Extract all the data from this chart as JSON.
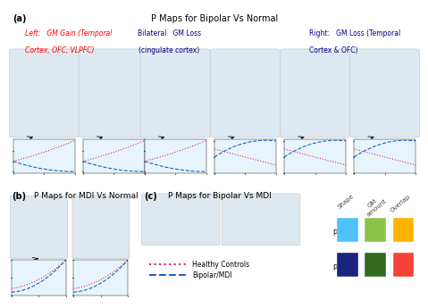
{
  "title_a": "P Maps for Bipolar Vs Normal",
  "title_b": "P Maps for MDI Vs Normal",
  "title_c": "P Maps for Bipolar Vs MDI",
  "label_a": "(a)",
  "label_b": "(b)",
  "label_c": "(c)",
  "left_label_line1": "Left:   GM Gain (Temporal",
  "left_label_line2": "Cortex, OFC, VLPFC)",
  "bilateral_label_line1": "Bilateral   GM Loss",
  "bilateral_label_line2": "(cingulate cortex)",
  "right_label_line1": "Right:   GM Loss (Temporal",
  "right_label_line2": "Cortex & OFC)",
  "legend_shape_label": "Shape",
  "legend_gm_label": "GM\namount",
  "legend_overlap_label": "Overlap",
  "legend_p05": "p≤0.05",
  "legend_p01": "p≤0.01",
  "healthy_label": "Healthy Controls",
  "bipolar_label": "Bipolar/MDI",
  "color_blue_light": "#4fc3f7",
  "color_blue_dark": "#1a237e",
  "color_green_light": "#8bc34a",
  "color_green_dark": "#33691e",
  "color_orange": "#ffb300",
  "color_red": "#f44336",
  "brain_bg": "#e8e8e8",
  "plot_bg": "#e8f4f8",
  "fig_bg": "#ffffff",
  "healthy_color": "#e91e63",
  "bipolar_color": "#1565c0"
}
